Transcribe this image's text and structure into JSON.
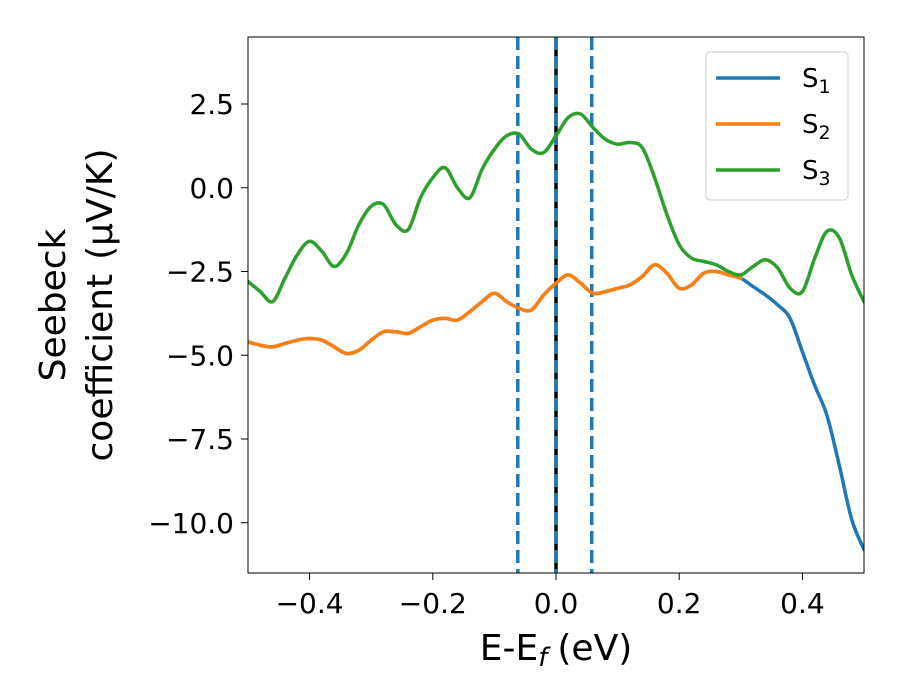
{
  "chart_data": {
    "type": "line",
    "xlabel": "E-E",
    "xlabel_sub": "f",
    "xlabel_unit": "(eV)",
    "ylabel_line1": "Seebeck",
    "ylabel_line2": "coefficient",
    "ylabel_unit": "(μV/K)",
    "xlim": [
      -0.5,
      0.5
    ],
    "ylim": [
      -11.5,
      4.5
    ],
    "x_ticks": [
      -0.4,
      -0.2,
      0.0,
      0.2,
      0.4
    ],
    "x_tick_labels": [
      "−0.4",
      "−0.2",
      "0.0",
      "0.2",
      "0.4"
    ],
    "y_ticks": [
      2.5,
      0.0,
      -2.5,
      -5.0,
      -7.5,
      -10.0
    ],
    "y_tick_labels": [
      "2.5",
      "0.0",
      "−2.5",
      "−5.0",
      "−7.5",
      "−10.0"
    ],
    "grid": false,
    "legend_position": "top-right",
    "vertical_lines": [
      {
        "x": -0.062,
        "color": "#1f77b4",
        "style": "dashed"
      },
      {
        "x": 0.0,
        "color": "#000000",
        "style": "solid"
      },
      {
        "x": 0.0,
        "color": "#1f77b4",
        "style": "dashed"
      },
      {
        "x": 0.058,
        "color": "#1f77b4",
        "style": "dashed"
      }
    ],
    "series": [
      {
        "name": "S",
        "name_sub": "1",
        "color": "#1f77b4",
        "x": [
          -0.5,
          -0.48,
          -0.46,
          -0.44,
          -0.42,
          -0.4,
          -0.38,
          -0.36,
          -0.34,
          -0.32,
          -0.3,
          -0.28,
          -0.26,
          -0.24,
          -0.22,
          -0.2,
          -0.18,
          -0.16,
          -0.14,
          -0.12,
          -0.1,
          -0.08,
          -0.06,
          -0.04,
          -0.02,
          0.0,
          0.02,
          0.04,
          0.06,
          0.08,
          0.1,
          0.12,
          0.14,
          0.16,
          0.18,
          0.2,
          0.22,
          0.24,
          0.26,
          0.28,
          0.3,
          0.32,
          0.34,
          0.36,
          0.38,
          0.4,
          0.42,
          0.44,
          0.46,
          0.48,
          0.5
        ],
        "values": [
          -4.6,
          -4.7,
          -4.75,
          -4.65,
          -4.55,
          -4.5,
          -4.55,
          -4.75,
          -4.95,
          -4.85,
          -4.55,
          -4.3,
          -4.3,
          -4.35,
          -4.15,
          -3.95,
          -3.9,
          -3.95,
          -3.7,
          -3.4,
          -3.15,
          -3.4,
          -3.6,
          -3.65,
          -3.2,
          -2.85,
          -2.6,
          -2.85,
          -3.15,
          -3.1,
          -3.0,
          -2.9,
          -2.65,
          -2.3,
          -2.55,
          -3.0,
          -2.9,
          -2.55,
          -2.5,
          -2.6,
          -2.7,
          -2.95,
          -3.2,
          -3.5,
          -3.9,
          -4.9,
          -5.9,
          -6.8,
          -8.3,
          -9.9,
          -10.8
        ]
      },
      {
        "name": "S",
        "name_sub": "2",
        "color": "#ff7f0e",
        "x": [
          -0.5,
          -0.48,
          -0.46,
          -0.44,
          -0.42,
          -0.4,
          -0.38,
          -0.36,
          -0.34,
          -0.32,
          -0.3,
          -0.28,
          -0.26,
          -0.24,
          -0.22,
          -0.2,
          -0.18,
          -0.16,
          -0.14,
          -0.12,
          -0.1,
          -0.08,
          -0.06,
          -0.04,
          -0.02,
          0.0,
          0.02,
          0.04,
          0.06,
          0.08,
          0.1,
          0.12,
          0.14,
          0.16,
          0.18,
          0.2,
          0.22,
          0.24,
          0.26,
          0.28,
          0.3
        ],
        "values": [
          -4.6,
          -4.7,
          -4.75,
          -4.65,
          -4.55,
          -4.5,
          -4.55,
          -4.75,
          -4.95,
          -4.85,
          -4.55,
          -4.3,
          -4.3,
          -4.35,
          -4.15,
          -3.95,
          -3.9,
          -3.95,
          -3.7,
          -3.4,
          -3.15,
          -3.4,
          -3.6,
          -3.65,
          -3.2,
          -2.85,
          -2.6,
          -2.85,
          -3.15,
          -3.1,
          -3.0,
          -2.9,
          -2.65,
          -2.3,
          -2.55,
          -3.0,
          -2.9,
          -2.55,
          -2.5,
          -2.6,
          -2.7
        ]
      },
      {
        "name": "S",
        "name_sub": "3",
        "color": "#2ca02c",
        "x": [
          -0.5,
          -0.48,
          -0.46,
          -0.44,
          -0.42,
          -0.4,
          -0.38,
          -0.36,
          -0.34,
          -0.32,
          -0.3,
          -0.28,
          -0.26,
          -0.24,
          -0.22,
          -0.2,
          -0.18,
          -0.16,
          -0.14,
          -0.12,
          -0.1,
          -0.08,
          -0.06,
          -0.04,
          -0.02,
          0.0,
          0.02,
          0.04,
          0.06,
          0.08,
          0.1,
          0.12,
          0.14,
          0.16,
          0.18,
          0.2,
          0.22,
          0.24,
          0.26,
          0.28,
          0.3,
          0.32,
          0.34,
          0.36,
          0.38,
          0.4,
          0.42,
          0.44,
          0.46,
          0.48,
          0.5
        ],
        "values": [
          -2.8,
          -3.1,
          -3.4,
          -2.7,
          -2.0,
          -1.6,
          -1.9,
          -2.35,
          -1.95,
          -1.1,
          -0.55,
          -0.5,
          -1.1,
          -1.25,
          -0.3,
          0.3,
          0.6,
          0.0,
          -0.3,
          0.55,
          1.15,
          1.55,
          1.6,
          1.15,
          1.05,
          1.55,
          2.1,
          2.2,
          1.8,
          1.45,
          1.3,
          1.35,
          1.2,
          0.3,
          -0.8,
          -1.7,
          -2.1,
          -2.2,
          -2.3,
          -2.5,
          -2.6,
          -2.35,
          -2.15,
          -2.4,
          -3.0,
          -3.1,
          -2.1,
          -1.3,
          -1.5,
          -2.6,
          -3.4
        ]
      }
    ]
  }
}
